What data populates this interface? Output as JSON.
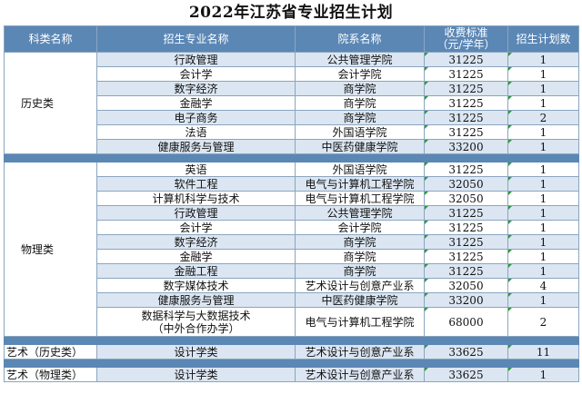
{
  "title": "2022年江苏省专业招生计划",
  "headers": {
    "category": "科类名称",
    "major": "招生专业名称",
    "college": "院系名称",
    "fee_line1": "收费标准",
    "fee_line2": "（元/学年）",
    "count": "招生计划数"
  },
  "groups": {
    "history": {
      "label": "历史类",
      "rows": [
        {
          "major": "行政管理",
          "college": "公共管理学院",
          "fee": "31225",
          "count": "1"
        },
        {
          "major": "会计学",
          "college": "会计学院",
          "fee": "31225",
          "count": "1"
        },
        {
          "major": "数字经济",
          "college": "商学院",
          "fee": "31225",
          "count": "1"
        },
        {
          "major": "金融学",
          "college": "商学院",
          "fee": "31225",
          "count": "1"
        },
        {
          "major": "电子商务",
          "college": "商学院",
          "fee": "31225",
          "count": "2"
        },
        {
          "major": "法语",
          "college": "外国语学院",
          "fee": "31225",
          "count": "1"
        },
        {
          "major": "健康服务与管理",
          "college": "中医药健康学院",
          "fee": "33200",
          "count": "1"
        }
      ]
    },
    "physics": {
      "label": "物理类",
      "rows": [
        {
          "major": "英语",
          "college": "外国语学院",
          "fee": "31225",
          "count": "1"
        },
        {
          "major": "软件工程",
          "college": "电气与计算机工程学院",
          "fee": "32050",
          "count": "1"
        },
        {
          "major": "计算机科学与技术",
          "college": "电气与计算机工程学院",
          "fee": "32050",
          "count": "1"
        },
        {
          "major": "行政管理",
          "college": "公共管理学院",
          "fee": "31225",
          "count": "1"
        },
        {
          "major": "会计学",
          "college": "会计学院",
          "fee": "31225",
          "count": "1"
        },
        {
          "major": "数字经济",
          "college": "商学院",
          "fee": "31225",
          "count": "1"
        },
        {
          "major": "金融学",
          "college": "商学院",
          "fee": "31225",
          "count": "1"
        },
        {
          "major": "金融工程",
          "college": "商学院",
          "fee": "31225",
          "count": "1"
        },
        {
          "major": "数字媒体技术",
          "college": "艺术设计与创意产业系",
          "fee": "32050",
          "count": "4"
        },
        {
          "major": "健康服务与管理",
          "college": "中医药健康学院",
          "fee": "33200",
          "count": "1"
        },
        {
          "major_line1": "数据科学与大数据技术",
          "major_line2": "（中外合作办学）",
          "college": "电气与计算机工程学院",
          "fee": "68000",
          "count": "2"
        }
      ]
    },
    "art_history": {
      "label": "艺术（历史类）",
      "rows": [
        {
          "major": "设计学类",
          "college": "艺术设计与创意产业系",
          "fee": "33625",
          "count": "11"
        }
      ]
    },
    "art_physics": {
      "label": "艺术（物理类）",
      "rows": [
        {
          "major": "设计学类",
          "college": "艺术设计与创意产业系",
          "fee": "33625",
          "count": "1"
        }
      ]
    }
  },
  "colors": {
    "header_bg": "#5b87b5",
    "row_alt_bg": "#dbe6f2",
    "border": "#8aa5bf",
    "cell_marker": "#2e9a3a"
  }
}
